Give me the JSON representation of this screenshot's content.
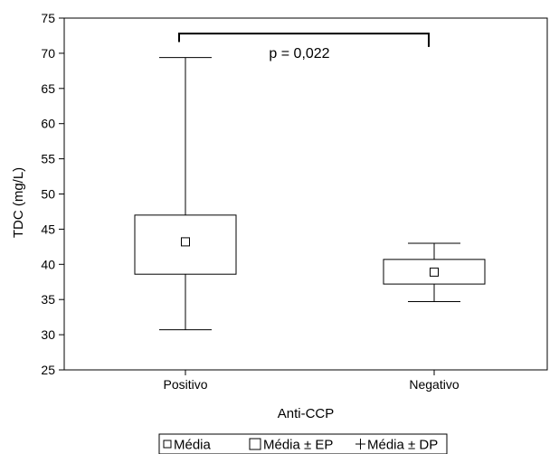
{
  "chart_data": {
    "type": "boxplot",
    "xlabel": "Anti-CCP",
    "ylabel": "TDC (mg/L)",
    "ylim": [
      25,
      75
    ],
    "yticks": [
      25,
      30,
      35,
      40,
      45,
      50,
      55,
      60,
      65,
      70,
      75
    ],
    "grid": false,
    "categories": [
      "Positivo",
      "Negativo"
    ],
    "groups": [
      {
        "category": "Positivo",
        "mean": 43.2,
        "se_low": 38.6,
        "se_high": 47.0,
        "sd_low": 30.7,
        "sd_high": 69.4
      },
      {
        "category": "Negativo",
        "mean": 38.9,
        "se_low": 37.2,
        "se_high": 40.7,
        "sd_low": 34.7,
        "sd_high": 43.0
      }
    ],
    "annotation": {
      "text": "p = 0,022",
      "bracket_y": 72.8,
      "drop_left_to": 71.6,
      "drop_right_to": 70.9
    },
    "legend": {
      "placement": "bottom-center",
      "items": [
        {
          "symbol": "small-square",
          "label": "Média"
        },
        {
          "symbol": "square",
          "label": "Média ± EP"
        },
        {
          "symbol": "plus",
          "label": "Média ± DP"
        }
      ]
    }
  }
}
